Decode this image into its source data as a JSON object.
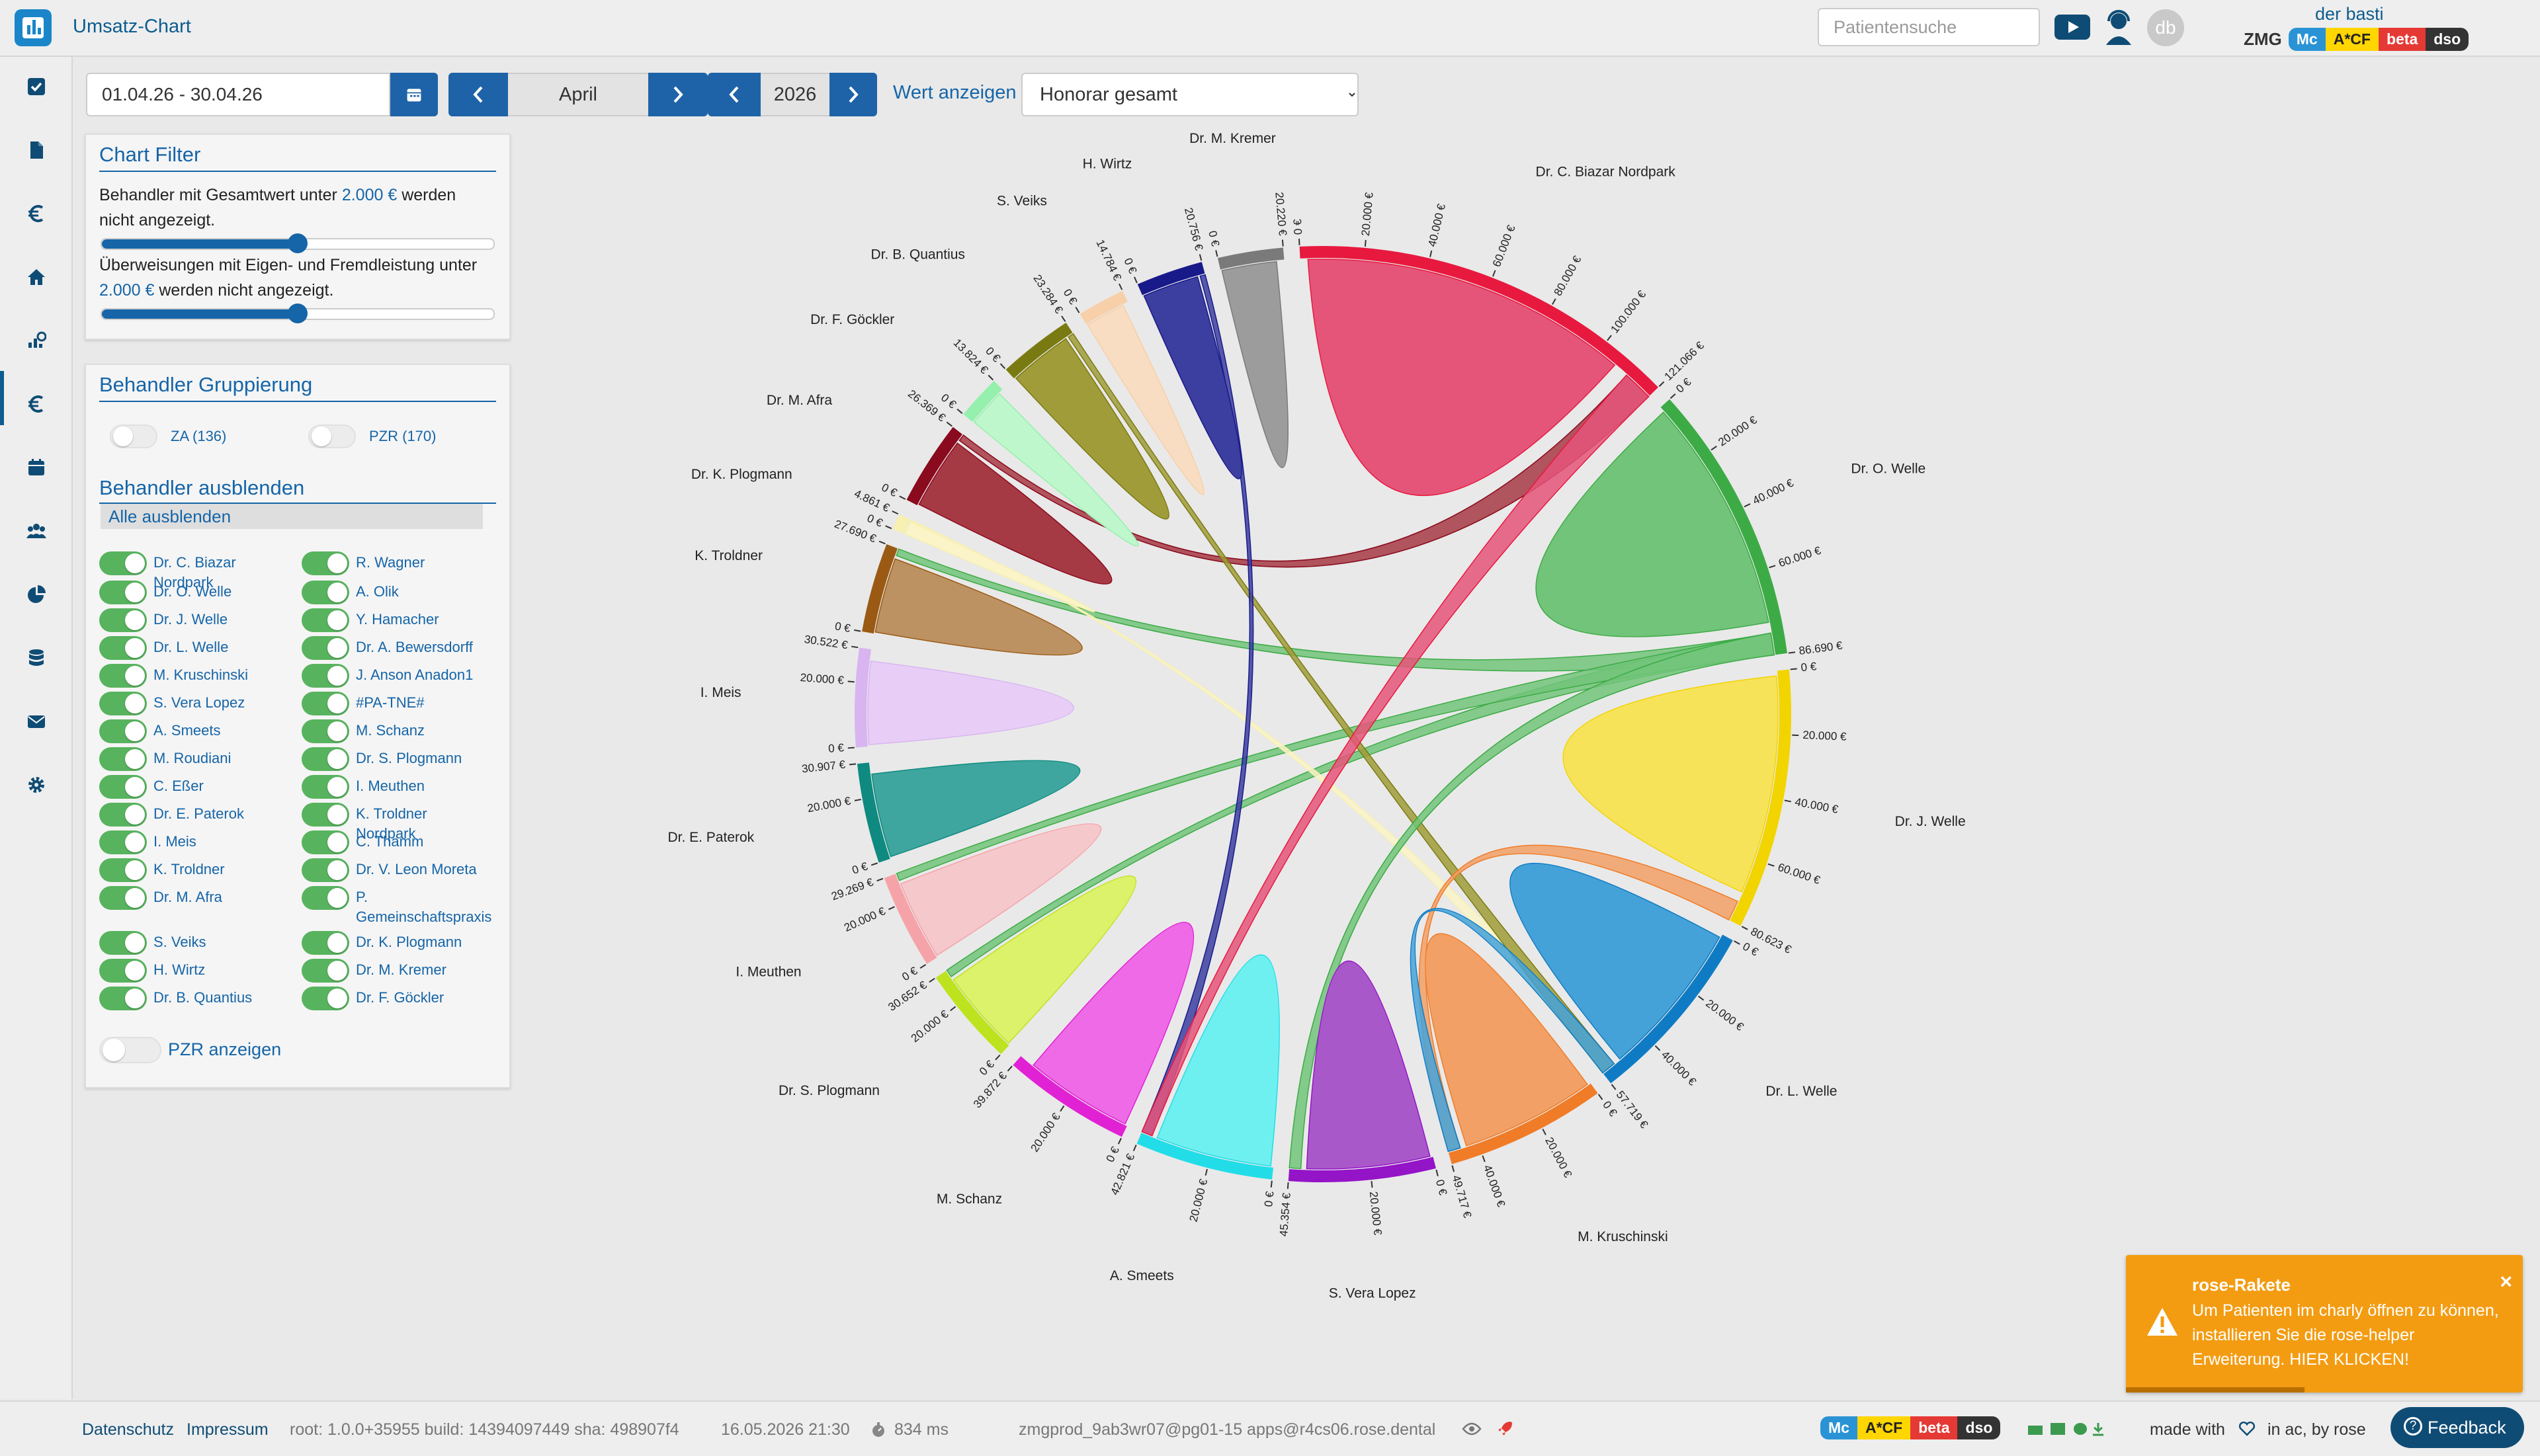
{
  "header": {
    "app_title": "Umsatz-Chart",
    "patient_search_placeholder": "Patientensuche",
    "user_initials": "db",
    "user_name": "der basti",
    "org": "ZMG",
    "badges": [
      "Mc",
      "A*CF",
      "beta",
      "dso"
    ]
  },
  "sidebar": {
    "icons": [
      "check-square-icon",
      "document-icon",
      "euro-icon",
      "home-icon",
      "chart-analytics-icon",
      "euro-icon",
      "calendar-icon",
      "users-icon",
      "pie-chart-icon",
      "database-icon",
      "mail-icon",
      "gear-icon"
    ],
    "selected_index": 4
  },
  "toolbar": {
    "date_range": "01.04.26 - 30.04.26",
    "month": "April",
    "year": "2026",
    "value_label": "Wert anzeigen",
    "value_selected": "Honorar gesamt"
  },
  "filter": {
    "title": "Chart Filter",
    "text1_pre": "Behandler mit Gesamtwert unter ",
    "text1_val": "2.000 €",
    "text1_post": " werden",
    "text1_line2": "nicht angezeigt.",
    "slider1_fraction": 0.5,
    "text2_line1": "Überweisungen mit Eigen- und Fremdleistung unter",
    "text2_val": "2.000 €",
    "text2_post": " werden nicht angezeigt.",
    "slider2_fraction": 0.5
  },
  "grouping": {
    "title": "Behandler Gruppierung",
    "za": "ZA (136)",
    "pzr": "PZR (170)",
    "hide_title": "Behandler ausblenden",
    "hide_all": "Alle ausblenden",
    "col1": [
      "Dr. C. Biazar Nordpark",
      "Dr. O. Welle",
      "Dr. J. Welle",
      "Dr. L. Welle",
      "M. Kruschinski",
      "S. Vera Lopez",
      "A. Smeets",
      "M. Roudiani",
      "C. Eßer",
      "Dr. E. Paterok",
      "I. Meis",
      "K. Troldner",
      "Dr. M. Afra",
      "S. Veiks",
      "H. Wirtz",
      "Dr. B. Quantius"
    ],
    "col2": [
      "R. Wagner",
      "A. Olik",
      "Y. Hamacher",
      "Dr. A. Bewersdorff",
      "J. Anson Anadon1",
      "#PA-TNE#",
      "M. Schanz",
      "Dr. S. Plogmann",
      "I. Meuthen",
      "K. Troldner Nordpark",
      "C. Thamm",
      "Dr. V. Leon Moreta",
      "P. Gemeinschaftspraxis",
      "Dr. K. Plogmann",
      "Dr. M. Kremer",
      "Dr. F. Göckler"
    ],
    "pzr_show": "PZR anzeigen"
  },
  "chart_data": {
    "type": "chord",
    "unit": "€",
    "nodes": [
      {
        "name": "Dr. C. Biazar Nordpark",
        "total": 121066,
        "ticks": [
          "0 €",
          "20.000 €",
          "40.000 €",
          "60.000 €",
          "80.000 €",
          "100.000 €",
          "121.066 €"
        ],
        "color": "#e8193f",
        "fill": "#e5557a"
      },
      {
        "name": "Dr. O. Welle",
        "total": 86690,
        "ticks": [
          "0 €",
          "20.000 €",
          "40.000 €",
          "60.000 €",
          "86.690 €"
        ],
        "color": "#3cab45",
        "fill": "#72c47a"
      },
      {
        "name": "Dr. J. Welle",
        "total": 80623,
        "ticks": [
          "0 €",
          "20.000 €",
          "40.000 €",
          "60.000 €",
          "80.623 €"
        ],
        "color": "#f2d400",
        "fill": "#f7e35a"
      },
      {
        "name": "Dr. L. Welle",
        "total": 57719,
        "ticks": [
          "0 €",
          "20.000 €",
          "40.000 €",
          "57.719 €"
        ],
        "color": "#0f7bc4",
        "fill": "#45a2d8"
      },
      {
        "name": "M. Kruschinski",
        "total": 49717,
        "ticks": [
          "0 €",
          "20.000 €",
          "40.000 €",
          "49.717 €"
        ],
        "color": "#f07c28",
        "fill": "#f2a066"
      },
      {
        "name": "S. Vera Lopez",
        "total": 45354,
        "ticks": [
          "0 €",
          "20.000 €",
          "45.354 €"
        ],
        "color": "#9414c7",
        "fill": "#a958c9"
      },
      {
        "name": "A. Smeets",
        "total": 42821,
        "ticks": [
          "0 €",
          "20.000 €",
          "42.821 €"
        ],
        "color": "#22dde8",
        "fill": "#6ff0f0"
      },
      {
        "name": "M. Schanz",
        "total": 39872,
        "ticks": [
          "0 €",
          "20.000 €",
          "39.872 €"
        ],
        "color": "#e122d4",
        "fill": "#ee6ae6"
      },
      {
        "name": "Dr. S. Plogmann",
        "total": 30652,
        "ticks": [
          "0 €",
          "20.000 €",
          "30.652 €"
        ],
        "color": "#bde31e",
        "fill": "#dcf26a"
      },
      {
        "name": "I. Meuthen",
        "total": 29269,
        "ticks": [
          "0 €",
          "20.000 €",
          "29.269 €"
        ],
        "color": "#f5a3a8",
        "fill": "#f5c8cc"
      },
      {
        "name": "Dr. E. Paterok",
        "total": 30907,
        "ticks": [
          "0 €",
          "20.000 €",
          "30.907 €"
        ],
        "color": "#0e8a80",
        "fill": "#3ea69e"
      },
      {
        "name": "I. Meis",
        "total": 30522,
        "ticks": [
          "0 €",
          "20.000 €",
          "30.522 €"
        ],
        "color": "#d8b4f0",
        "fill": "#e8cef7"
      },
      {
        "name": "K. Troldner",
        "total": 27690,
        "ticks": [
          "0 €",
          "27.690 €"
        ],
        "color": "#9a5a14",
        "fill": "#bd9262"
      },
      {
        "name": "Dr. K. Plogmann",
        "total": 4861,
        "ticks": [
          "0 €",
          "4.861 €"
        ],
        "color": "#f7f0b0",
        "fill": "#faf4c8"
      },
      {
        "name": "Dr. M. Afra",
        "total": 26369,
        "ticks": [
          "0 €",
          "26.369 €"
        ],
        "color": "#8a0a1e",
        "fill": "#a63a44"
      },
      {
        "name": "Dr. F. Göckler",
        "total": 13824,
        "ticks": [
          "0 €",
          "13.824 €"
        ],
        "color": "#94f0ac",
        "fill": "#bff7cc"
      },
      {
        "name": "Dr. B. Quantius",
        "total": 23284,
        "ticks": [
          "0 €",
          "23.284 €"
        ],
        "color": "#7a7a12",
        "fill": "#a09c3a"
      },
      {
        "name": "S. Veiks",
        "total": 14784,
        "ticks": [
          "0 €",
          "14.784 €"
        ],
        "color": "#f7cfa8",
        "fill": "#f8ddc2"
      },
      {
        "name": "H. Wirtz",
        "total": 20756,
        "ticks": [
          "0 €",
          "20.756 €"
        ],
        "color": "#181a8a",
        "fill": "#3c3ea0"
      },
      {
        "name": "Dr. M. Kremer",
        "total": 20220,
        "ticks": [
          "0 €",
          "20.220 €"
        ],
        "color": "#7a7a7a",
        "fill": "#9c9c9c"
      }
    ],
    "links": [
      {
        "from": "Dr. M. Afra",
        "to": "Dr. C. Biazar Nordpark"
      },
      {
        "from": "Dr. O. Welle",
        "to": "K. Troldner"
      },
      {
        "from": "Dr. O. Welle",
        "to": "Dr. S. Plogmann"
      },
      {
        "from": "Dr. O. Welle",
        "to": "I. Meuthen"
      },
      {
        "from": "Dr. K. Plogmann",
        "to": "Dr. L. Welle"
      },
      {
        "from": "Dr. B. Quantius",
        "to": "Dr. L. Welle"
      },
      {
        "from": "H. Wirtz",
        "to": "A. Smeets"
      },
      {
        "from": "Dr. C. Biazar Nordpark",
        "to": "A. Smeets"
      },
      {
        "from": "Dr. O. Welle",
        "to": "S. Vera Lopez"
      },
      {
        "from": "M. Kruschinski",
        "to": "Dr. J. Welle"
      },
      {
        "from": "Dr. L. Welle",
        "to": "M. Kruschinski"
      }
    ]
  },
  "toast": {
    "title": "rose-Rakete",
    "message": "Um Patienten im charly öffnen zu können, installieren Sie die rose-helper Erweiterung. HIER KLICKEN!"
  },
  "footer": {
    "datenschutz": "Datenschutz",
    "impressum": "Impressum",
    "version": "root: 1.0.0+35955  build: 14394097449  sha: 498907f4",
    "datetime": "16.05.2026 21:30",
    "timing": "834 ms",
    "db": "zmgprod_9ab3wr07@pg01-15  apps@r4cs06.rose.dental",
    "made_with": "made with",
    "by": "in ac, by rose",
    "feedback": "Feedback"
  }
}
